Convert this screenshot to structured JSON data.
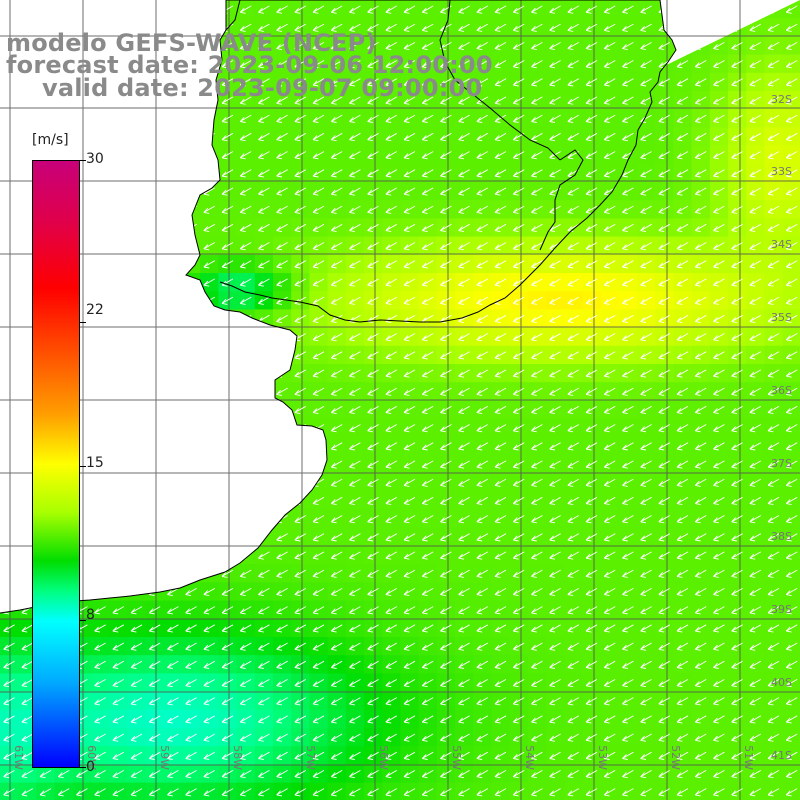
{
  "title": {
    "model": "modelo GEFS-WAVE (NCEP)",
    "forecast": "forecast date: 2023-09-06 12:00:00",
    "valid": "valid date: 2023-09-07 09:00:00"
  },
  "colorbar": {
    "unit": "[m/s]",
    "ticks": [
      "30",
      "22",
      "15",
      "8",
      "0"
    ],
    "values": [
      30,
      22,
      15,
      8,
      0
    ],
    "min": 0,
    "max": 30
  },
  "map": {
    "lon_labels": [
      "61W",
      "60W",
      "59W",
      "58W",
      "57W",
      "56W",
      "55W",
      "54W",
      "53W",
      "52W",
      "51W"
    ],
    "lat_labels": [
      "32S",
      "33S",
      "34S",
      "35S",
      "36S",
      "37S",
      "38S",
      "39S",
      "40S",
      "41S"
    ],
    "lon_range": [
      -62,
      -51
    ],
    "lat_range": [
      -31.5,
      -41.5
    ],
    "wind_direction": "from northeast",
    "colors": {
      "land": "#ffffff",
      "coast": "#000000",
      "grid": "#555555",
      "arrow": "#ffffff",
      "label": "#777777"
    }
  }
}
